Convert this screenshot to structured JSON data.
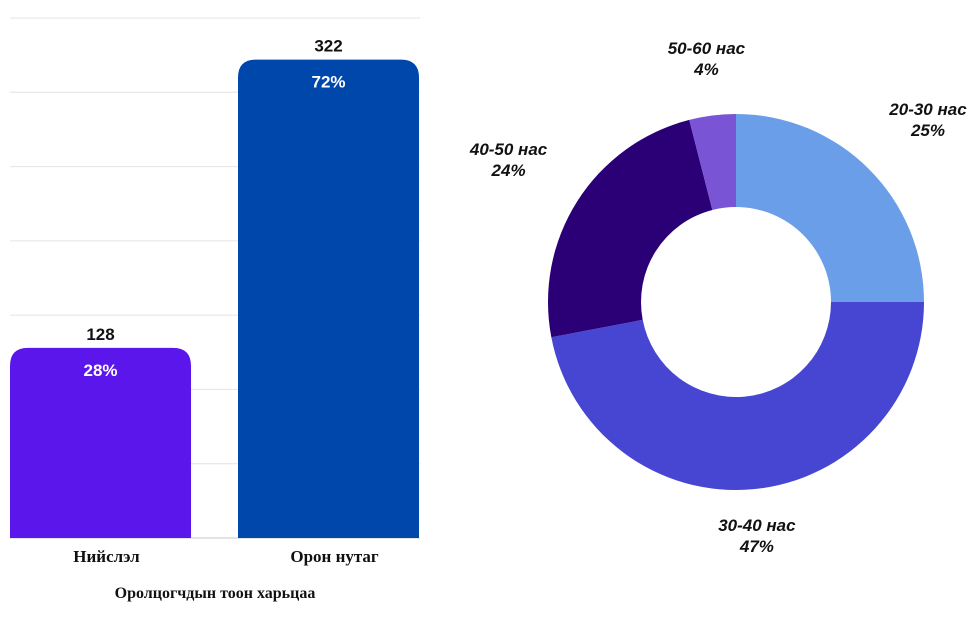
{
  "chart_data": [
    {
      "type": "bar",
      "categories": [
        "Нийслэл",
        "Орон нутаг"
      ],
      "values": [
        128,
        322
      ],
      "data_labels": [
        "128",
        "322"
      ],
      "percent_labels": [
        "28%",
        "72%"
      ],
      "colors": [
        "#5b16eb",
        "#0047ab"
      ],
      "xlabel": "Оролцогчдын тоон харьцаа",
      "ylim": [
        0,
        350
      ],
      "grid": true
    },
    {
      "type": "pie",
      "style": "donut",
      "start": "top, clockwise",
      "slices": [
        {
          "label": "20-30 нас",
          "value": 25,
          "value_label": "25%",
          "color": "#6b9ee8"
        },
        {
          "label": "30-40 нас",
          "value": 47,
          "value_label": "47%",
          "color": "#4646d2"
        },
        {
          "label": "40-50 нас",
          "value": 24,
          "value_label": "24%",
          "color": "#2b0077"
        },
        {
          "label": "50-60 нас",
          "value": 4,
          "value_label": "4%",
          "color": "#7955d5"
        }
      ]
    }
  ]
}
